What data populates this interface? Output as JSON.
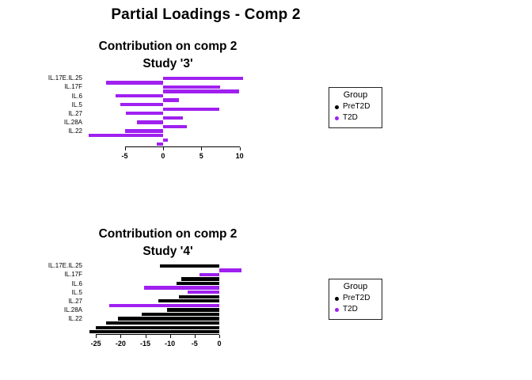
{
  "page_title": "Partial Loadings - Comp 2",
  "legend": {
    "title": "Group",
    "items": [
      {
        "label": "PreT2D",
        "color": "#000000"
      },
      {
        "label": "T2D",
        "color": "#A020F0"
      }
    ]
  },
  "chart_data": [
    {
      "type": "bar",
      "orientation": "horizontal",
      "title": "Contribution on comp 2",
      "subtitle": "Study '3'",
      "xlabel": "",
      "ylabel": "",
      "grid": false,
      "legend_position": "right",
      "x_ticks": [
        -5,
        0,
        5,
        10
      ],
      "xlim": [
        -9.9,
        10.75
      ],
      "y_labels": [
        "IL.17E.IL.25",
        "IL.17F",
        "IL.6",
        "IL.5",
        "IL.27",
        "IL.28A",
        "IL.22"
      ],
      "y_label_note": "labels mark every other bar (bars 1,3,5,7,9,11,13 from top)",
      "bars": [
        {
          "value": 10.4,
          "group": "T2D"
        },
        {
          "value": -7.4,
          "group": "T2D"
        },
        {
          "value": 7.4,
          "group": "T2D"
        },
        {
          "value": 9.9,
          "group": "T2D"
        },
        {
          "value": -6.2,
          "group": "T2D"
        },
        {
          "value": 2.1,
          "group": "T2D"
        },
        {
          "value": -5.6,
          "group": "T2D"
        },
        {
          "value": 7.3,
          "group": "T2D"
        },
        {
          "value": -4.8,
          "group": "T2D"
        },
        {
          "value": 2.6,
          "group": "T2D"
        },
        {
          "value": -3.4,
          "group": "T2D"
        },
        {
          "value": 3.1,
          "group": "T2D"
        },
        {
          "value": -4.9,
          "group": "T2D"
        },
        {
          "value": -9.7,
          "group": "T2D"
        },
        {
          "value": 0.6,
          "group": "T2D"
        },
        {
          "value": -0.8,
          "group": "T2D"
        }
      ]
    },
    {
      "type": "bar",
      "orientation": "horizontal",
      "title": "Contribution on comp 2",
      "subtitle": "Study '4'",
      "xlabel": "",
      "ylabel": "",
      "grid": false,
      "legend_position": "right",
      "x_ticks": [
        -25,
        -20,
        -15,
        -10,
        -5,
        0
      ],
      "xlim": [
        -26.8,
        5.3
      ],
      "y_labels": [
        "IL.17E.IL.25",
        "IL.17F",
        "IL.6",
        "IL.5",
        "IL.27",
        "IL.28A",
        "IL.22"
      ],
      "y_label_note": "labels mark every other bar (bars 1,3,5,7,9,11,13 from top)",
      "bars": [
        {
          "value": -12.0,
          "group": "PreT2D"
        },
        {
          "value": 4.5,
          "group": "T2D"
        },
        {
          "value": -4.0,
          "group": "T2D"
        },
        {
          "value": -7.7,
          "group": "PreT2D"
        },
        {
          "value": -8.7,
          "group": "PreT2D"
        },
        {
          "value": -15.2,
          "group": "T2D"
        },
        {
          "value": -6.4,
          "group": "T2D"
        },
        {
          "value": -8.2,
          "group": "PreT2D"
        },
        {
          "value": -12.3,
          "group": "PreT2D"
        },
        {
          "value": -22.3,
          "group": "T2D"
        },
        {
          "value": -10.6,
          "group": "PreT2D"
        },
        {
          "value": -15.8,
          "group": "PreT2D"
        },
        {
          "value": -20.5,
          "group": "PreT2D"
        },
        {
          "value": -22.9,
          "group": "PreT2D"
        },
        {
          "value": -25.0,
          "group": "PreT2D"
        },
        {
          "value": -26.4,
          "group": "PreT2D"
        }
      ]
    }
  ]
}
